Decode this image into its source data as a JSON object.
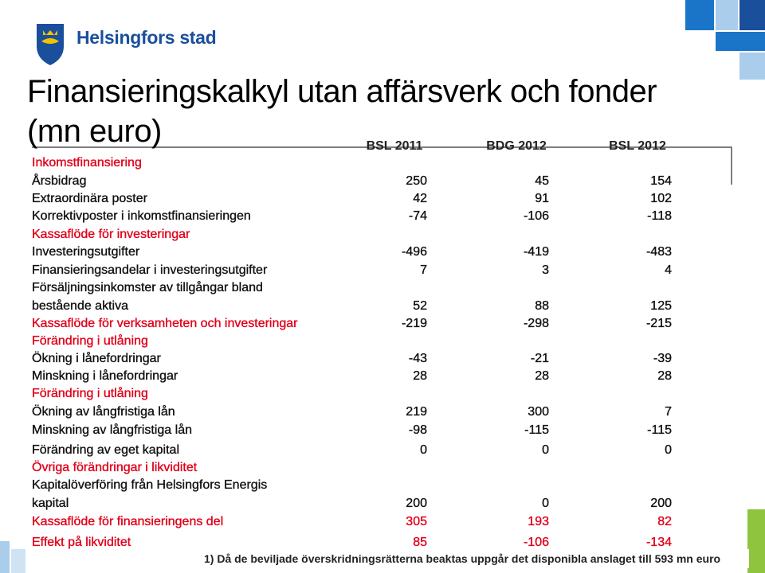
{
  "header": {
    "brand": "Helsingfors stad"
  },
  "title": "Finansieringskalkyl utan affärsverk och fonder (mn euro)",
  "table": {
    "columns": [
      "BSL 2011",
      "BDG 2012",
      "BSL 2012"
    ],
    "rows": [
      {
        "label": "Inkomstfinansiering",
        "color": "#e2001a"
      },
      {
        "label": "Årsbidrag",
        "values": [
          250,
          45,
          154
        ]
      },
      {
        "label": "Extraordinära poster",
        "values": [
          42,
          91,
          102
        ]
      },
      {
        "label": "Korrektivposter i inkomstfinansieringen",
        "values": [
          -74,
          -106,
          -118
        ]
      },
      {
        "label": "Kassaflöde för investeringar",
        "color": "#e2001a"
      },
      {
        "label": "Investeringsutgifter",
        "values": [
          -496,
          -419,
          -483
        ]
      },
      {
        "label": "Finansieringsandelar i investeringsutgifter",
        "values": [
          7,
          3,
          4
        ]
      },
      {
        "label": "Försäljningsinkomster av tillgångar bland"
      },
      {
        "label": "bestående aktiva",
        "values": [
          52,
          88,
          125
        ]
      },
      {
        "label": "Kassaflöde för verksamheten och investeringar",
        "color": "#e2001a",
        "values": [
          -219,
          -298,
          -215
        ]
      },
      {
        "label": "Förändring i utlåning",
        "color": "#e2001a"
      },
      {
        "label": "Ökning i lånefordringar",
        "values": [
          -43,
          -21,
          -39
        ]
      },
      {
        "label": "Minskning i lånefordringar",
        "values": [
          28,
          28,
          28
        ]
      },
      {
        "label": "Förändring i utlåning",
        "color": "#e2001a"
      },
      {
        "label": "Ökning av långfristiga lån",
        "values": [
          219,
          300,
          7
        ]
      },
      {
        "label": "Minskning av långfristiga lån",
        "values": [
          -98,
          -115,
          -115
        ]
      },
      {
        "label": "Förändring av eget kapital",
        "values": [
          0,
          0,
          0
        ]
      },
      {
        "label": "Övriga förändringar i likviditet",
        "color": "#e2001a"
      },
      {
        "label": "Kapitalöverföring från Helsingfors Energis"
      },
      {
        "label": "kapital",
        "values": [
          200,
          0,
          200
        ]
      },
      {
        "label": "Kassaflöde för finansieringens del",
        "color": "#e2001a",
        "value_color": "#e2001a",
        "values": [
          305,
          193,
          82
        ]
      },
      {
        "label": "Effekt på likviditet",
        "color": "#e2001a",
        "value_color": "#e2001a",
        "values": [
          85,
          -106,
          -134
        ]
      }
    ]
  },
  "footnote": "1) Då de beviljade överskridningsrätterna beaktas uppgår det disponibla anslaget till 593 mn euro"
}
